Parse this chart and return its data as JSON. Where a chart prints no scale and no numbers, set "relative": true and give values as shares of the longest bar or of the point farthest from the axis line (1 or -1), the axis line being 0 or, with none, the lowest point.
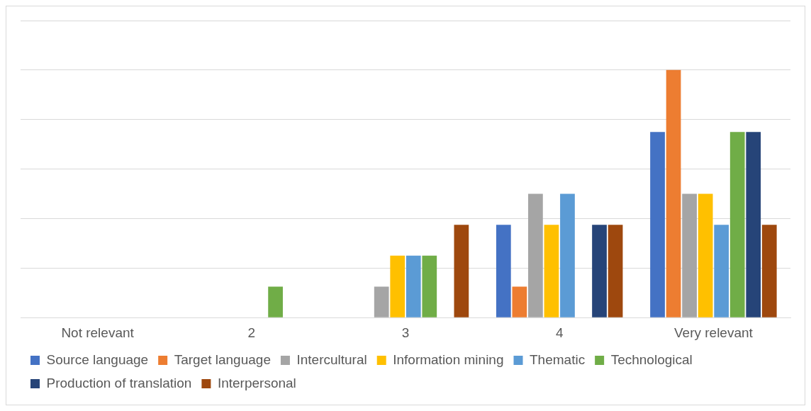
{
  "chart_data": {
    "type": "bar",
    "relative": true,
    "grid": "y",
    "legend": "bottom",
    "categories": [
      "Not relevant",
      "2",
      "3",
      "4",
      "Very relevant"
    ],
    "series": [
      {
        "name": "Source language",
        "color": "#4472c4",
        "values": [
          0,
          0,
          0,
          0.375,
          0.75
        ]
      },
      {
        "name": "Target language",
        "color": "#ed7d31",
        "values": [
          0,
          0,
          0,
          0.125,
          1
        ]
      },
      {
        "name": "Intercultural",
        "color": "#a5a5a5",
        "values": [
          0,
          0,
          0.125,
          0.5,
          0.5
        ]
      },
      {
        "name": "Information mining",
        "color": "#ffc000",
        "values": [
          0,
          0,
          0.25,
          0.375,
          0.5
        ]
      },
      {
        "name": "Thematic",
        "color": "#5b9bd5",
        "values": [
          0,
          0,
          0.25,
          0.5,
          0.375
        ]
      },
      {
        "name": "Technological",
        "color": "#70ad47",
        "values": [
          0,
          0.125,
          0.25,
          0,
          0.75
        ]
      },
      {
        "name": "Production of translation",
        "color": "#264478",
        "values": [
          0,
          0,
          0,
          0.375,
          0.75
        ]
      },
      {
        "name": "Interpersonal",
        "color": "#9e480e",
        "values": [
          0,
          0,
          0.375,
          0.375,
          0.375
        ]
      }
    ]
  }
}
